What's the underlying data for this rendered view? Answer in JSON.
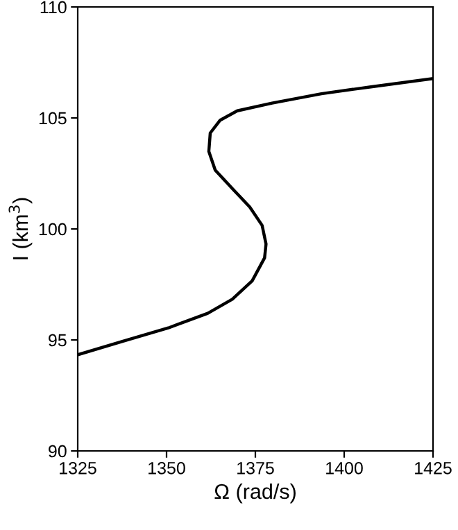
{
  "chart_data": {
    "type": "line",
    "xlabel": "Ω (rad/s)",
    "ylabel": "I (km$^{3}$)",
    "xlim": [
      1325,
      1425
    ],
    "xticks": [
      1325,
      1350,
      1375,
      1400,
      1425
    ],
    "ylim": [
      90,
      110
    ],
    "yticks": [
      90,
      95,
      100,
      105,
      110
    ],
    "grid": false,
    "legend": false,
    "series": [
      {
        "color": "#000000",
        "line_style": "solid",
        "x": [
          1325,
          1337.9,
          1350.5,
          1361.6,
          1368.5,
          1374.1,
          1377.6,
          1378.0,
          1376.9,
          1373.4,
          1368.5,
          1363.7,
          1361.9,
          1362.3,
          1365.1,
          1369.9,
          1379.7,
          1393.6,
          1407.5,
          1425
        ],
        "values": [
          94.33,
          94.95,
          95.54,
          96.2,
          96.83,
          97.66,
          98.7,
          99.32,
          100.16,
          100.99,
          101.82,
          102.65,
          103.49,
          104.32,
          104.9,
          105.32,
          105.67,
          106.09,
          106.4,
          106.77
        ]
      }
    ]
  }
}
